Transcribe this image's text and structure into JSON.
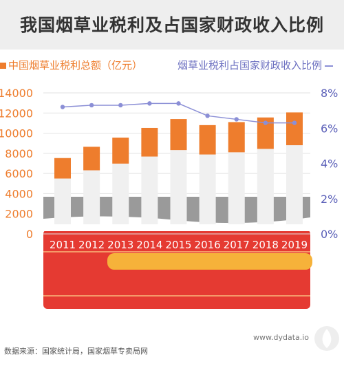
{
  "title": "我国烟草业税利及占国家财政收入比例",
  "legend": {
    "tax": "中国烟草业税利总额（亿元）",
    "ratio": "烟草业税利占国家财政收入比例"
  },
  "footer": {
    "source": "数据来源：国家统计局，国家烟草专卖局网",
    "site": "www.dydata.io"
  },
  "colors": {
    "bar_top": "#ee7d2d",
    "bar_body": "#f0f0f0",
    "line": "#8b8fd6",
    "left_axis": "#ee7d2d",
    "right_axis": "#5a5fb8",
    "band_red": "#e53a32",
    "band_yellow": "#f6b23a"
  },
  "chart_data": {
    "type": "bar",
    "categories": [
      "2011",
      "2012",
      "2013",
      "2014",
      "2015",
      "2016",
      "2017",
      "2018",
      "2019"
    ],
    "series": [
      {
        "name": "中国烟草业税利总额（亿元）",
        "type": "bar",
        "axis": "left",
        "values": [
          7530,
          8650,
          9560,
          10520,
          11400,
          10800,
          11100,
          11560,
          12060
        ]
      },
      {
        "name": "烟草业税利占国家财政收入比例",
        "type": "line",
        "axis": "right",
        "values": [
          7.2,
          7.3,
          7.3,
          7.4,
          7.4,
          6.7,
          6.5,
          6.3,
          6.3
        ]
      }
    ],
    "left_axis": {
      "ylim": [
        0,
        14000
      ],
      "ticks": [
        "0",
        "2000",
        "4000",
        "6000",
        "8000",
        "10000",
        "12000",
        "14000"
      ]
    },
    "right_axis": {
      "ylim": [
        0,
        8
      ],
      "ticks": [
        "0%",
        "2%",
        "4%",
        "6%",
        "8%"
      ]
    },
    "grid": true
  }
}
